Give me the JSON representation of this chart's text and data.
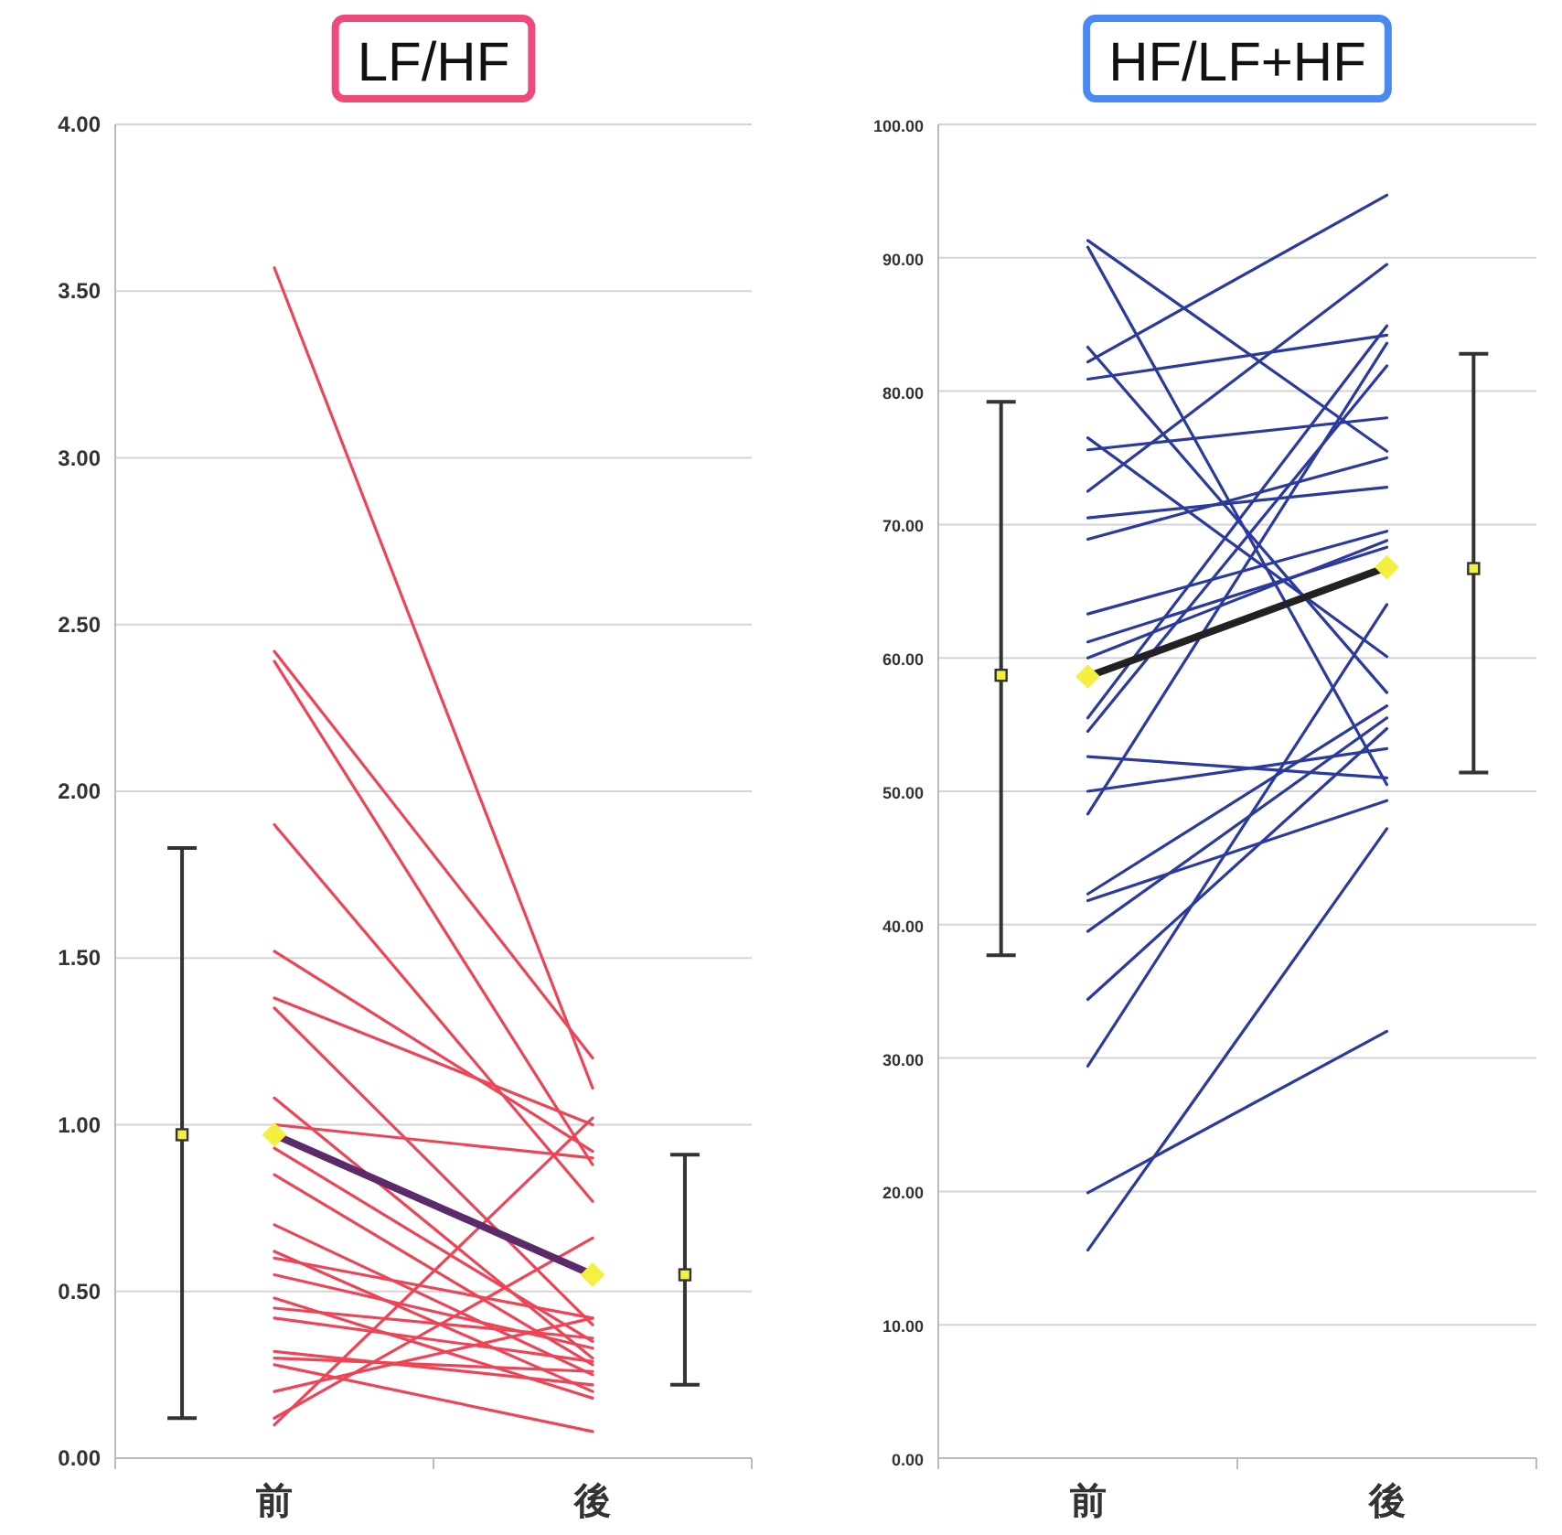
{
  "chart_data": [
    {
      "type": "line",
      "title": "LF/HF",
      "grid": "y",
      "categories": [
        "前",
        "後"
      ],
      "ylim": [
        0,
        4
      ],
      "yticks": [
        {
          "value": 0,
          "label": "0.00"
        },
        {
          "value": 0.5,
          "label": "0.50"
        },
        {
          "value": 1,
          "label": "1.00"
        },
        {
          "value": 1.5,
          "label": "1.50"
        },
        {
          "value": 2,
          "label": "2.00"
        },
        {
          "value": 2.5,
          "label": "2.50"
        },
        {
          "value": 3,
          "label": "3.00"
        },
        {
          "value": 3.5,
          "label": "3.50"
        },
        {
          "value": 4,
          "label": "4.00"
        }
      ],
      "series": [
        {
          "color": "#ee4455",
          "values": [
            3.57,
            1.11
          ]
        },
        {
          "color": "#ee4455",
          "values": [
            2.42,
            1.2
          ]
        },
        {
          "color": "#ee4455",
          "values": [
            2.39,
            0.88
          ]
        },
        {
          "color": "#ee4455",
          "values": [
            1.9,
            0.77
          ]
        },
        {
          "color": "#ee4455",
          "values": [
            1.52,
            0.92
          ]
        },
        {
          "color": "#ee4455",
          "values": [
            1.38,
            1.0
          ]
        },
        {
          "color": "#ee4455",
          "values": [
            1.35,
            0.4
          ]
        },
        {
          "color": "#ee4455",
          "values": [
            1.08,
            0.3
          ]
        },
        {
          "color": "#ee4455",
          "values": [
            1.0,
            0.9
          ]
        },
        {
          "color": "#ee4455",
          "values": [
            0.93,
            0.35
          ]
        },
        {
          "color": "#ee4455",
          "values": [
            0.85,
            0.28
          ]
        },
        {
          "color": "#ee4455",
          "values": [
            0.7,
            0.25
          ]
        },
        {
          "color": "#ee4455",
          "values": [
            0.62,
            0.2
          ]
        },
        {
          "color": "#ee4455",
          "values": [
            0.6,
            0.42
          ]
        },
        {
          "color": "#ee4455",
          "values": [
            0.55,
            0.33
          ]
        },
        {
          "color": "#ee4455",
          "values": [
            0.48,
            0.18
          ]
        },
        {
          "color": "#ee4455",
          "values": [
            0.45,
            0.36
          ]
        },
        {
          "color": "#ee4455",
          "values": [
            0.42,
            0.29
          ]
        },
        {
          "color": "#ee4455",
          "values": [
            0.32,
            0.22
          ]
        },
        {
          "color": "#ee4455",
          "values": [
            0.3,
            0.26
          ]
        },
        {
          "color": "#ee4455",
          "values": [
            0.28,
            0.08
          ]
        },
        {
          "color": "#ee4455",
          "values": [
            0.2,
            0.42
          ]
        },
        {
          "color": "#ee4455",
          "values": [
            0.12,
            0.66
          ]
        },
        {
          "color": "#ee4455",
          "values": [
            0.1,
            1.02
          ]
        },
        {
          "color": "#5a2a6a",
          "values": [
            0.97,
            0.55
          ],
          "marker": "diamond"
        },
        {
          "type": "scatter",
          "color": "#333333",
          "values": [
            0.97,
            0.55
          ],
          "errors": [
            [
              0.12,
              1.83
            ],
            [
              0.22,
              0.91
            ]
          ],
          "marker": "square"
        }
      ]
    },
    {
      "type": "line",
      "title": "HF/LF+HF",
      "grid": "y",
      "categories": [
        "前",
        "後"
      ],
      "ylim": [
        0,
        100
      ],
      "yticks": [
        {
          "value": 0,
          "label": "0.00"
        },
        {
          "value": 10,
          "label": "10.00"
        },
        {
          "value": 20,
          "label": "20.00"
        },
        {
          "value": 30,
          "label": "30.00"
        },
        {
          "value": 40,
          "label": "40.00"
        },
        {
          "value": 50,
          "label": "50.00"
        },
        {
          "value": 60,
          "label": "60.00"
        },
        {
          "value": 70,
          "label": "70.00"
        },
        {
          "value": 80,
          "label": "80.00"
        },
        {
          "value": 90,
          "label": "90.00"
        },
        {
          "value": 100,
          "label": "100.00"
        }
      ],
      "series": [
        {
          "color": "#2a3a9e",
          "values": [
            91.3,
            75.5
          ]
        },
        {
          "color": "#2a3a9e",
          "values": [
            90.8,
            50.5
          ]
        },
        {
          "color": "#2a3a9e",
          "values": [
            83.3,
            57.4
          ]
        },
        {
          "color": "#2a3a9e",
          "values": [
            82.2,
            94.7
          ]
        },
        {
          "color": "#2a3a9e",
          "values": [
            80.9,
            84.2
          ]
        },
        {
          "color": "#2a3a9e",
          "values": [
            76.5,
            60.1
          ]
        },
        {
          "color": "#2a3a9e",
          "values": [
            75.6,
            78.0
          ]
        },
        {
          "color": "#2a3a9e",
          "values": [
            72.5,
            89.5
          ]
        },
        {
          "color": "#2a3a9e",
          "values": [
            70.5,
            72.8
          ]
        },
        {
          "color": "#2a3a9e",
          "values": [
            68.9,
            75.0
          ]
        },
        {
          "color": "#2a3a9e",
          "values": [
            63.3,
            69.5
          ]
        },
        {
          "color": "#2a3a9e",
          "values": [
            61.2,
            68.3
          ]
        },
        {
          "color": "#2a3a9e",
          "values": [
            60.0,
            68.8
          ]
        },
        {
          "color": "#2a3a9e",
          "values": [
            55.5,
            84.9
          ]
        },
        {
          "color": "#2a3a9e",
          "values": [
            54.5,
            81.9
          ]
        },
        {
          "color": "#2a3a9e",
          "values": [
            52.6,
            51.0
          ]
        },
        {
          "color": "#2a3a9e",
          "values": [
            50.0,
            53.2
          ]
        },
        {
          "color": "#2a3a9e",
          "values": [
            48.3,
            83.6
          ]
        },
        {
          "color": "#2a3a9e",
          "values": [
            42.3,
            56.4
          ]
        },
        {
          "color": "#2a3a9e",
          "values": [
            41.8,
            49.3
          ]
        },
        {
          "color": "#2a3a9e",
          "values": [
            39.5,
            55.5
          ]
        },
        {
          "color": "#2a3a9e",
          "values": [
            34.4,
            54.7
          ]
        },
        {
          "color": "#2a3a9e",
          "values": [
            29.4,
            64.0
          ]
        },
        {
          "color": "#2a3a9e",
          "values": [
            19.9,
            32.0
          ]
        },
        {
          "color": "#2a3a9e",
          "values": [
            15.6,
            47.2
          ]
        },
        {
          "color": "#222222",
          "values": [
            58.6,
            66.8
          ],
          "marker": "diamond"
        },
        {
          "type": "scatter",
          "color": "#333333",
          "values": [
            58.7,
            66.7
          ],
          "errors": [
            [
              37.7,
              79.2
            ],
            [
              51.4,
              82.8
            ]
          ],
          "marker": "square"
        }
      ]
    }
  ]
}
